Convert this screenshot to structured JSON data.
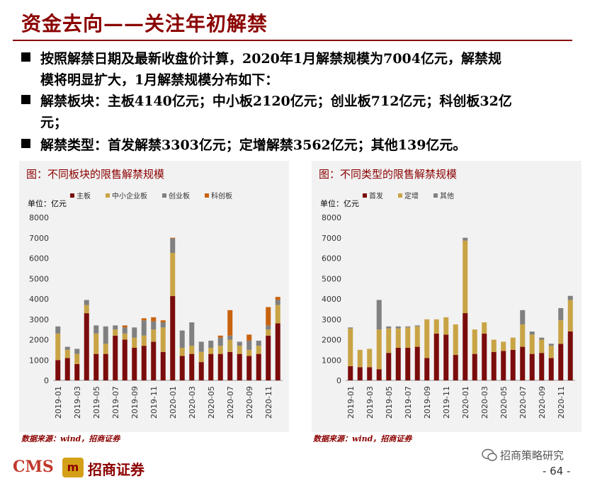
{
  "slide": {
    "title": "资金去向——关注年初解禁",
    "bullets": [
      {
        "line1": "按照解禁日期及最新收盘价计算，2020年1月解禁规模为7004亿元，解禁规",
        "line2": "模将明显扩大，1月解禁规模分布如下："
      },
      {
        "line1": "解禁板块：主板4140亿元；中小板2120亿元；创业板712亿元；科创板32亿",
        "line2": "元；"
      },
      {
        "line1": "解禁类型：首发解禁3303亿元；定增解禁3562亿元；其他139亿元。",
        "line2": ""
      }
    ],
    "source_left": "数据来源：wind，招商证券",
    "source_right": "数据来源：wind，招商证券",
    "logo_text": "CMS",
    "logo_cn": "招商证券",
    "wechat_label": "招商策略研究",
    "page_number": "- 64 -",
    "colors": {
      "accent": "#8b0000",
      "series1": "#7b0c0c",
      "series2": "#c9a445",
      "series3": "#808080",
      "series4": "#c8620e"
    }
  },
  "chart_data": [
    {
      "type": "bar",
      "stacked": true,
      "title": "图：不同板块的限售解禁规模",
      "unit_label": "单位：亿元",
      "ylim": [
        0,
        8000
      ],
      "yticks": [
        "0",
        "1000",
        "2000",
        "3000",
        "4000",
        "5000",
        "6000",
        "7000",
        "8000"
      ],
      "categories": [
        "2019-01",
        "2019-02",
        "2019-03",
        "2019-04",
        "2019-05",
        "2019-06",
        "2019-07",
        "2019-08",
        "2019-09",
        "2019-10",
        "2019-11",
        "2019-12",
        "2020-01",
        "2020-02",
        "2020-03",
        "2020-04",
        "2020-05",
        "2020-06",
        "2020-07",
        "2020-08",
        "2020-09",
        "2020-10",
        "2020-11",
        "2020-12"
      ],
      "xtick_labels": [
        "2019-01",
        "2019-03",
        "2019-05",
        "2019-07",
        "2019-09",
        "2019-11",
        "2020-01",
        "2020-03",
        "2020-05",
        "2020-07",
        "2020-09",
        "2020-11"
      ],
      "series": [
        {
          "name": "主板",
          "values": [
            1000,
            1100,
            800,
            3300,
            1300,
            1300,
            2200,
            2000,
            1600,
            1700,
            1900,
            1400,
            4140,
            1200,
            1300,
            900,
            1300,
            1300,
            1400,
            1300,
            1200,
            1300,
            2200,
            2800
          ]
        },
        {
          "name": "中小企业板",
          "values": [
            1300,
            400,
            500,
            400,
            1000,
            500,
            300,
            300,
            500,
            500,
            600,
            1200,
            2120,
            400,
            400,
            500,
            300,
            400,
            600,
            400,
            300,
            400,
            300,
            900
          ]
        },
        {
          "name": "创业板",
          "values": [
            350,
            150,
            250,
            250,
            400,
            850,
            200,
            300,
            500,
            750,
            400,
            250,
            712,
            850,
            1150,
            500,
            350,
            400,
            200,
            200,
            450,
            250,
            200,
            250
          ]
        },
        {
          "name": "科创板",
          "values": [
            0,
            0,
            0,
            0,
            0,
            0,
            0,
            100,
            0,
            100,
            200,
            100,
            32,
            0,
            0,
            0,
            0,
            100,
            1250,
            0,
            300,
            0,
            900,
            150
          ]
        }
      ]
    },
    {
      "type": "bar",
      "stacked": true,
      "title": "图：不同类型的限售解禁规模",
      "unit_label": "单位：亿元",
      "ylim": [
        0,
        8000
      ],
      "yticks": [
        "0",
        "1000",
        "2000",
        "3000",
        "4000",
        "5000",
        "6000",
        "7000",
        "8000"
      ],
      "categories": [
        "2019-01",
        "2019-02",
        "2019-03",
        "2019-04",
        "2019-05",
        "2019-06",
        "2019-07",
        "2019-08",
        "2019-09",
        "2019-10",
        "2019-11",
        "2019-12",
        "2020-01",
        "2020-02",
        "2020-03",
        "2020-04",
        "2020-05",
        "2020-06",
        "2020-07",
        "2020-08",
        "2020-09",
        "2020-10",
        "2020-11",
        "2020-12"
      ],
      "xtick_labels": [
        "2019-01",
        "2019-03",
        "2019-05",
        "2019-07",
        "2019-09",
        "2019-11",
        "2020-01",
        "2020-03",
        "2020-05",
        "2020-07",
        "2020-09",
        "2020-11"
      ],
      "series": [
        {
          "name": "首发",
          "values": [
            700,
            650,
            650,
            550,
            1350,
            1600,
            1600,
            1650,
            1100,
            2300,
            2250,
            1250,
            3303,
            1300,
            2300,
            1400,
            1450,
            1500,
            1650,
            1300,
            1350,
            1100,
            1800,
            2400
          ]
        },
        {
          "name": "定增",
          "values": [
            1850,
            850,
            900,
            1950,
            1200,
            950,
            1000,
            1000,
            1900,
            700,
            850,
            1500,
            3562,
            1200,
            550,
            600,
            450,
            600,
            1100,
            950,
            650,
            600,
            1150,
            1550
          ]
        },
        {
          "name": "其他",
          "values": [
            50,
            0,
            0,
            1450,
            100,
            100,
            50,
            50,
            0,
            0,
            0,
            0,
            139,
            0,
            0,
            0,
            0,
            0,
            700,
            150,
            100,
            100,
            600,
            200
          ]
        }
      ]
    }
  ]
}
